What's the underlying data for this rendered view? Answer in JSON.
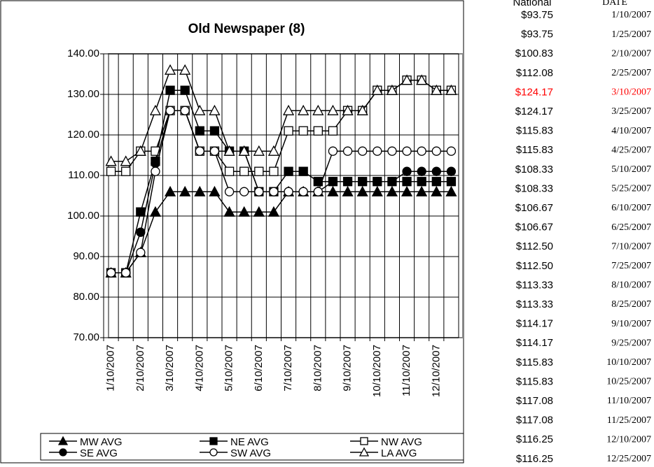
{
  "chart_data": {
    "type": "line",
    "title": "Old Newspaper (8)",
    "categories": [
      "1/10/2007",
      null,
      "2/10/2007",
      null,
      "3/10/2007",
      null,
      "4/10/2007",
      null,
      "5/10/2007",
      null,
      "6/10/2007",
      null,
      "7/10/2007",
      null,
      "8/10/2007",
      null,
      "9/10/2007",
      null,
      "10/10/2007",
      null,
      "11/10/2007",
      null,
      "12/10/2007",
      null
    ],
    "ylim": [
      70,
      140
    ],
    "yticks": [
      {
        "value": 70,
        "label": "70.00"
      },
      {
        "value": 80,
        "label": "80.00"
      },
      {
        "value": 90,
        "label": "90.00"
      },
      {
        "value": 100,
        "label": "100.00"
      },
      {
        "value": 110,
        "label": "110.00"
      },
      {
        "value": 120,
        "label": "120.00"
      },
      {
        "value": 130,
        "label": "130.00"
      },
      {
        "value": 140,
        "label": "140.00"
      }
    ],
    "grid": true,
    "color": "#000000",
    "series": [
      {
        "name": "MW AVG",
        "marker": "triangle",
        "filled": true,
        "values": [
          86,
          86,
          91,
          101,
          106,
          106,
          106,
          106,
          101,
          101,
          101,
          101,
          106,
          106,
          106,
          106,
          106,
          106,
          106,
          106,
          106,
          106,
          106,
          106
        ]
      },
      {
        "name": "NE AVG",
        "marker": "square",
        "filled": true,
        "values": [
          86,
          86,
          101,
          113.5,
          131,
          131,
          121,
          121,
          116,
          116,
          106,
          106,
          111,
          111,
          108.5,
          108.5,
          108.5,
          108.5,
          108.5,
          108.5,
          108.5,
          108.5,
          108.5,
          108.5
        ]
      },
      {
        "name": "NW AVG",
        "marker": "square",
        "filled": false,
        "values": [
          111,
          111,
          116,
          116,
          126,
          126,
          116,
          116,
          111,
          111,
          111,
          111,
          121,
          121,
          121,
          121,
          126,
          126,
          131,
          131,
          133.5,
          133.5,
          131,
          131
        ]
      },
      {
        "name": "SE AVG",
        "marker": "circle",
        "filled": true,
        "values": [
          86,
          86,
          96,
          113,
          126,
          126,
          116,
          116,
          116,
          116,
          106,
          106,
          106,
          106,
          106,
          108.5,
          108.5,
          108.5,
          108.5,
          108.5,
          111,
          111,
          111,
          111
        ]
      },
      {
        "name": "SW AVG",
        "marker": "circle",
        "filled": false,
        "values": [
          86,
          86,
          91,
          111,
          126,
          126,
          116,
          116,
          106,
          106,
          106,
          106,
          106,
          106,
          106,
          116,
          116,
          116,
          116,
          116,
          116,
          116,
          116,
          116
        ]
      },
      {
        "name": "LA AVG",
        "marker": "triangle",
        "filled": false,
        "values": [
          113.5,
          113.5,
          116,
          126,
          136,
          136,
          126,
          126,
          116,
          116,
          116,
          116,
          126,
          126,
          126,
          126,
          126,
          126,
          131,
          131,
          133.5,
          133.5,
          131,
          131
        ]
      }
    ]
  },
  "table": {
    "header": [
      "National",
      "DATE"
    ],
    "highlight_row": 4,
    "highlight_color": "#ff0000",
    "rows": [
      [
        "$93.75",
        "1/10/2007"
      ],
      [
        "$93.75",
        "1/25/2007"
      ],
      [
        "$100.83",
        "2/10/2007"
      ],
      [
        "$112.08",
        "2/25/2007"
      ],
      [
        "$124.17",
        "3/10/2007"
      ],
      [
        "$124.17",
        "3/25/2007"
      ],
      [
        "$115.83",
        "4/10/2007"
      ],
      [
        "$115.83",
        "4/25/2007"
      ],
      [
        "$108.33",
        "5/10/2007"
      ],
      [
        "$108.33",
        "5/25/2007"
      ],
      [
        "$106.67",
        "6/10/2007"
      ],
      [
        "$106.67",
        "6/25/2007"
      ],
      [
        "$112.50",
        "7/10/2007"
      ],
      [
        "$112.50",
        "7/25/2007"
      ],
      [
        "$113.33",
        "8/10/2007"
      ],
      [
        "$113.33",
        "8/25/2007"
      ],
      [
        "$114.17",
        "9/10/2007"
      ],
      [
        "$114.17",
        "9/25/2007"
      ],
      [
        "$115.83",
        "10/10/2007"
      ],
      [
        "$115.83",
        "10/25/2007"
      ],
      [
        "$117.08",
        "11/10/2007"
      ],
      [
        "$117.08",
        "11/25/2007"
      ],
      [
        "$116.25",
        "12/10/2007"
      ],
      [
        "$116.25",
        "12/25/2007"
      ]
    ]
  }
}
